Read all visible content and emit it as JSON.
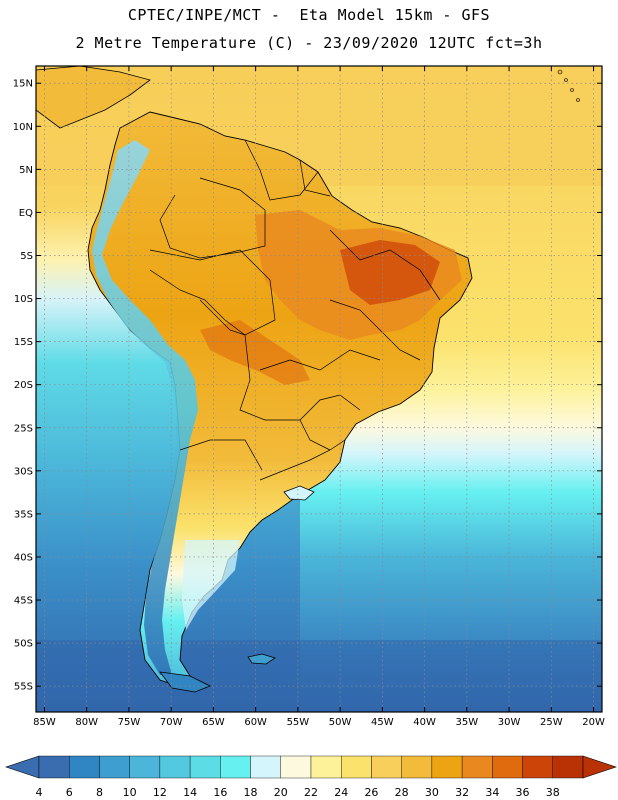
{
  "header": {
    "title_line1": "CPTEC/INPE/MCT -  Eta Model 15km - GFS",
    "title_line2": "2 Metre Temperature (C) - 23/09/2020 12UTC fct=3h"
  },
  "map": {
    "lon_range": [
      -86,
      -19
    ],
    "lat_range": [
      -58,
      17
    ],
    "lat_labels": [
      "15N",
      "10N",
      "5N",
      "EQ",
      "5S",
      "10S",
      "15S",
      "20S",
      "25S",
      "30S",
      "35S",
      "40S",
      "45S",
      "50S",
      "55S"
    ],
    "lat_values": [
      15,
      10,
      5,
      0,
      -5,
      -10,
      -15,
      -20,
      -25,
      -30,
      -35,
      -40,
      -45,
      -50,
      -55
    ],
    "lon_labels": [
      "85W",
      "80W",
      "75W",
      "70W",
      "65W",
      "60W",
      "55W",
      "50W",
      "45W",
      "40W",
      "35W",
      "30W",
      "25W",
      "20W"
    ],
    "lon_values": [
      -85,
      -80,
      -75,
      -70,
      -65,
      -60,
      -55,
      -50,
      -45,
      -40,
      -35,
      -30,
      -25,
      -20
    ]
  },
  "colorbar": {
    "labels": [
      "4",
      "6",
      "8",
      "10",
      "12",
      "14",
      "16",
      "18",
      "20",
      "22",
      "24",
      "26",
      "28",
      "30",
      "32",
      "34",
      "36",
      "38"
    ],
    "colors": [
      "#3a6db0",
      "#2f86c2",
      "#3e9ecf",
      "#4bb6d9",
      "#54c8df",
      "#5cdde6",
      "#66f0f0",
      "#d4f5fb",
      "#fdf9df",
      "#fdf29a",
      "#fbe26c",
      "#f7cf5a",
      "#f2bb3a",
      "#eda413",
      "#e9881f",
      "#e06a0e",
      "#cc4408",
      "#b83206"
    ]
  }
}
